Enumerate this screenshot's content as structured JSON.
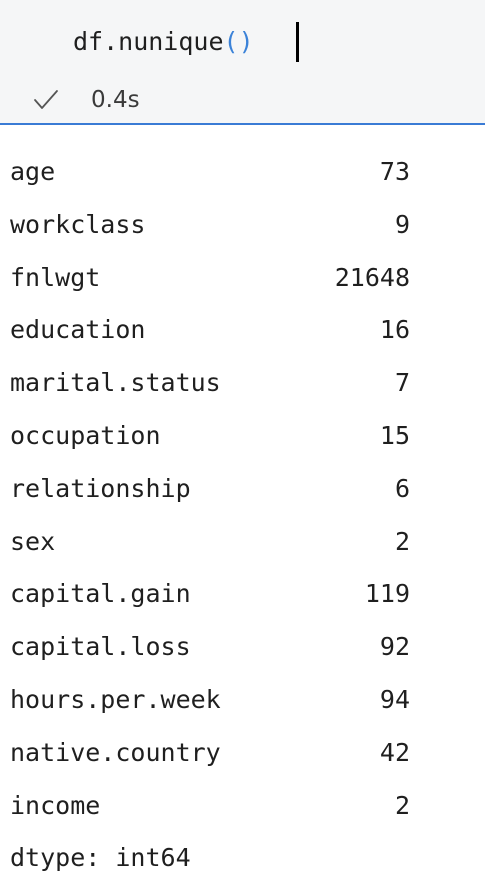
{
  "cell": {
    "code_prefix": "df.nunique",
    "code_parens": "()",
    "exec_time": "0.4s",
    "status_icon": "check-icon"
  },
  "output": {
    "rows": [
      {
        "key": "age",
        "value": "73"
      },
      {
        "key": "workclass",
        "value": "9"
      },
      {
        "key": "fnlwgt",
        "value": "21648"
      },
      {
        "key": "education",
        "value": "16"
      },
      {
        "key": "marital.status",
        "value": "7"
      },
      {
        "key": "occupation",
        "value": "15"
      },
      {
        "key": "relationship",
        "value": "6"
      },
      {
        "key": "sex",
        "value": "2"
      },
      {
        "key": "capital.gain",
        "value": "119"
      },
      {
        "key": "capital.loss",
        "value": "92"
      },
      {
        "key": "hours.per.week",
        "value": "94"
      },
      {
        "key": "native.country",
        "value": "42"
      },
      {
        "key": "income",
        "value": "2"
      }
    ],
    "dtype": "dtype: int64"
  },
  "colors": {
    "accent": "#3a7bd5",
    "paren": "#3b82d8",
    "cell_bg": "#f5f6f7"
  }
}
